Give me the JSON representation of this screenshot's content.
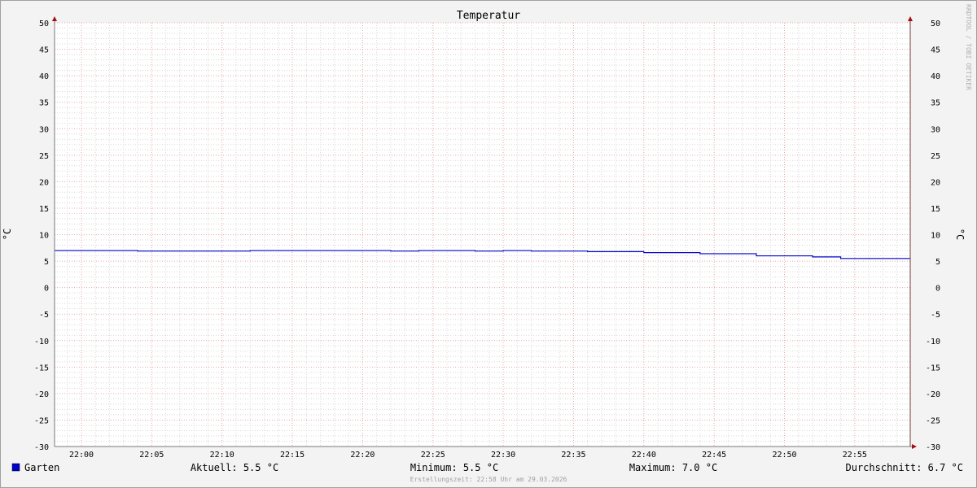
{
  "chart_data": {
    "type": "line",
    "title": "Temperatur",
    "ylabel": "°C",
    "ylabel_right": "°C",
    "ylim": [
      -30,
      50
    ],
    "yticks": [
      50,
      45,
      40,
      35,
      30,
      25,
      20,
      15,
      10,
      5,
      0,
      -5,
      -10,
      -15,
      -20,
      -25,
      -30
    ],
    "xlim": [
      "21:58",
      "22:59"
    ],
    "xticks": [
      "22:00",
      "22:05",
      "22:10",
      "22:15",
      "22:20",
      "22:25",
      "22:30",
      "22:35",
      "22:40",
      "22:45",
      "22:50",
      "22:55"
    ],
    "grid": true,
    "step": true,
    "series": [
      {
        "name": "Garten",
        "color": "#0000cc",
        "x": [
          "21:58",
          "22:04",
          "22:12",
          "22:22",
          "22:24",
          "22:28",
          "22:30",
          "22:32",
          "22:36",
          "22:40",
          "22:44",
          "22:48",
          "22:52",
          "22:54"
        ],
        "values": [
          7.0,
          6.9,
          7.0,
          6.9,
          7.0,
          6.9,
          7.0,
          6.9,
          6.8,
          6.6,
          6.4,
          6.0,
          5.8,
          5.5
        ]
      }
    ],
    "legend": {
      "name": "Garten",
      "current": "Aktuell: 5.5 °C",
      "minimum": "Minimum: 5.5 °C",
      "maximum": "Maximum: 7.0 °C",
      "average": "Durchschnitt: 6.7 °C"
    },
    "footer": "Erstellungszeit: 22:58 Uhr am 29.03.2026",
    "watermark": "RRDTOOL / TOBI OETIKER"
  }
}
